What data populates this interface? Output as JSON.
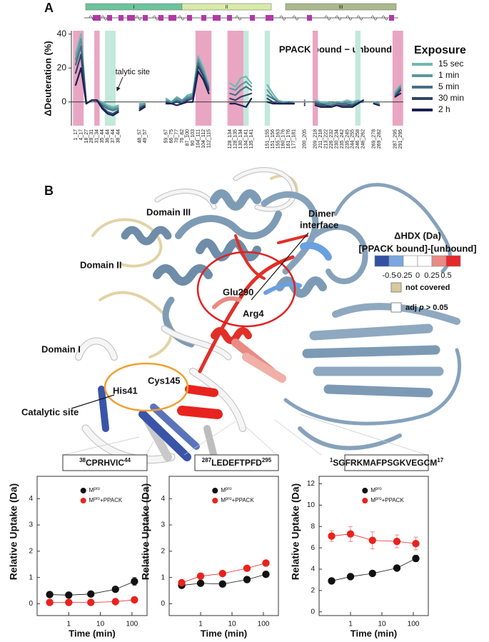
{
  "chart_data": [
    {
      "type": "line",
      "panel_label": "A",
      "subtitle": "PPACK bound − unbound",
      "annotation": "catalytic site",
      "y_label": "ΔDeuteration (%)",
      "legend_title": "Exposure",
      "domains": [
        {
          "label": "I",
          "color": "#6cc49c"
        },
        {
          "label": "II",
          "color": "#d8eaa8"
        },
        {
          "label": "III",
          "color": "#a9b98c"
        }
      ],
      "categories": [
        "1_17",
        "4_17",
        "18_27",
        "28_31",
        "31_34",
        "35_44",
        "36_44",
        "37_44",
        "38_44",
        null,
        null,
        null,
        "48_57",
        "49_57",
        null,
        null,
        null,
        "59_67",
        "66_75",
        "70_77",
        "76_82",
        "87_100",
        "90_103",
        "104_111",
        "104_112",
        "112_115",
        null,
        null,
        null,
        "128_134",
        "128_135",
        "130_134",
        "134_141",
        "135_141",
        null,
        null,
        "151_155",
        "151_156",
        "155_163",
        "160_176",
        "161_176",
        "177_181",
        null,
        "200_205",
        null,
        "209_218",
        "211_218",
        "213_222",
        "226_232",
        "230_234",
        "235_242",
        "235_245",
        "244_255",
        "246_258",
        "246_262",
        null,
        "269_278",
        "269_282",
        null,
        null,
        "287_295",
        "291_295"
      ],
      "ylim": [
        -14,
        42
      ],
      "yticks": [
        0,
        20,
        40
      ],
      "zero_line": true,
      "highlights": [
        {
          "from": "1_17",
          "to": "4_17",
          "color": "#e9a6c2"
        },
        {
          "from": "31_34",
          "to": "31_34",
          "color": "#e9a6c2"
        },
        {
          "from": "36_44",
          "to": "37_44",
          "color": "#c3e8dc"
        },
        {
          "from": "104_111",
          "to": "112_115",
          "color": "#e9a6c2"
        },
        {
          "from": "128_134",
          "to": "130_134",
          "color": "#e9a6c2"
        },
        {
          "from": "134_141",
          "to": "134_141",
          "color": "#c3e8dc"
        },
        {
          "from": "151_155",
          "to": "151_155",
          "color": "#c3e8dc"
        },
        {
          "from": "209_218",
          "to": "209_218",
          "color": "#e9a6c2"
        },
        {
          "from": "246_258",
          "to": "246_258",
          "color": "#c3e8dc"
        },
        {
          "from": "287_295",
          "to": "291_295",
          "color": "#e9a6c2"
        }
      ],
      "series": [
        {
          "name": "15 sec",
          "color": "#6fb9ae",
          "values": [
            28,
            40,
            -1,
            1,
            1,
            0,
            -2,
            -3,
            -2,
            null,
            null,
            null,
            -1,
            -1,
            null,
            null,
            null,
            2,
            0,
            3,
            1,
            4,
            5,
            27,
            20,
            10,
            null,
            null,
            null,
            11,
            9,
            14,
            15,
            11,
            null,
            null,
            10,
            5,
            1,
            0,
            0,
            0,
            null,
            1,
            null,
            1,
            0,
            0,
            -1,
            0,
            0,
            1,
            0,
            1,
            0,
            null,
            0,
            -1,
            null,
            null,
            6,
            10
          ]
        },
        {
          "name": "1 min",
          "color": "#5a98a0",
          "values": [
            25,
            37,
            -1,
            1,
            1,
            -1,
            -3,
            -4,
            -3,
            null,
            null,
            null,
            -2,
            -1,
            null,
            null,
            null,
            1,
            0,
            2,
            1,
            3,
            4,
            25,
            18,
            9,
            null,
            null,
            null,
            8,
            7,
            10,
            12,
            9,
            null,
            null,
            7,
            3,
            0,
            0,
            0,
            0,
            null,
            1,
            null,
            0,
            -1,
            -1,
            -1,
            0,
            -1,
            0,
            -1,
            0,
            0,
            null,
            0,
            -1,
            null,
            null,
            5,
            9
          ]
        },
        {
          "name": "5 min",
          "color": "#466f86",
          "values": [
            22,
            33,
            -1,
            1,
            1,
            -2,
            -4,
            -5,
            -4,
            null,
            null,
            null,
            -3,
            -2,
            null,
            null,
            null,
            0,
            -1,
            1,
            0,
            2,
            3,
            23,
            16,
            8,
            null,
            null,
            null,
            5,
            4,
            7,
            9,
            7,
            null,
            null,
            4,
            2,
            0,
            -1,
            0,
            -1,
            null,
            0,
            null,
            0,
            -1,
            -2,
            -2,
            -1,
            -1,
            -1,
            -2,
            0,
            0,
            null,
            -1,
            -2,
            null,
            null,
            4,
            8
          ]
        },
        {
          "name": "30 min",
          "color": "#2d4466",
          "values": [
            17,
            28,
            -1,
            1,
            1,
            -3,
            -6,
            -7,
            -5,
            null,
            null,
            null,
            -4,
            -2,
            null,
            null,
            null,
            0,
            -1,
            0,
            -1,
            1,
            2,
            21,
            15,
            7,
            null,
            null,
            null,
            2,
            1,
            3,
            4,
            5,
            null,
            null,
            2,
            0,
            -1,
            -1,
            -1,
            -1,
            null,
            -1,
            null,
            -1,
            -2,
            -2,
            -3,
            -2,
            -2,
            -2,
            -2,
            -1,
            1,
            null,
            -1,
            -2,
            null,
            null,
            3,
            7
          ]
        },
        {
          "name": "2 h",
          "color": "#1c1f52",
          "values": [
            10,
            20,
            -1,
            1,
            1,
            -4,
            -7,
            -8,
            -6,
            null,
            null,
            null,
            -5,
            -3,
            null,
            null,
            null,
            -1,
            -1,
            -2,
            -1,
            0,
            0,
            18,
            13,
            5,
            null,
            null,
            null,
            -1,
            -1,
            -2,
            -3,
            2,
            null,
            null,
            0,
            -1,
            -1,
            -1,
            -1,
            -1,
            null,
            -2,
            null,
            -2,
            -3,
            -3,
            -3,
            -2,
            -3,
            -3,
            -3,
            -1,
            1,
            null,
            -1,
            -2,
            null,
            null,
            3,
            5
          ]
        }
      ]
    },
    {
      "type": "line",
      "title": [
        "38",
        "CPRHVIC",
        "44"
      ],
      "x_label": "Time (min)",
      "y_label": "Relative Uptake (Da)",
      "x": [
        0.25,
        1,
        5,
        30,
        120
      ],
      "xscale": "log",
      "xlim": [
        0.1,
        300
      ],
      "xticks": [
        1,
        10,
        100
      ],
      "ylim": [
        -0.45,
        4.85
      ],
      "yticks": [
        0,
        1,
        2,
        3,
        4
      ],
      "series": [
        {
          "name": [
            "M",
            "pro"
          ],
          "color": "#111111",
          "values": [
            0.35,
            0.33,
            0.37,
            0.55,
            0.85
          ],
          "errors": [
            0.05,
            0.05,
            0.05,
            0.08,
            0.15
          ]
        },
        {
          "name": [
            "M",
            "pro",
            "+PPACK"
          ],
          "color": "#e8231e",
          "values": [
            0.05,
            0.05,
            0.05,
            0.08,
            0.15
          ],
          "errors": [
            0.03,
            0.03,
            0.03,
            0.05,
            0.08
          ]
        }
      ]
    },
    {
      "type": "line",
      "title": [
        "287",
        "LEDEFTPFD",
        "295"
      ],
      "x_label": "Time (min)",
      "y_label": "Relative Uptake (Da)",
      "x": [
        0.25,
        1,
        5,
        30,
        120
      ],
      "xscale": "log",
      "xlim": [
        0.1,
        300
      ],
      "xticks": [
        1,
        10,
        100
      ],
      "ylim": [
        -0.45,
        4.85
      ],
      "yticks": [
        0,
        1,
        2,
        3,
        4
      ],
      "series": [
        {
          "name": [
            "M",
            "pro"
          ],
          "color": "#111111",
          "values": [
            0.7,
            0.78,
            0.75,
            0.92,
            1.12
          ],
          "errors": [
            0.05,
            0.06,
            0.05,
            0.06,
            0.08
          ]
        },
        {
          "name": [
            "M",
            "pro",
            "+PPACK"
          ],
          "color": "#e8231e",
          "values": [
            0.8,
            1.05,
            1.15,
            1.35,
            1.55
          ],
          "errors": [
            0.06,
            0.06,
            0.06,
            0.08,
            0.1
          ]
        }
      ]
    },
    {
      "type": "line",
      "title": [
        "1",
        "SGFRKMAFPSGKVEGCM",
        "17"
      ],
      "x_label": "Time (min)",
      "y_label": "Relative Uptake (Da)",
      "x": [
        0.25,
        1,
        5,
        30,
        120
      ],
      "xscale": "log",
      "xlim": [
        0.1,
        300
      ],
      "xticks": [
        1,
        10,
        100
      ],
      "ylim": [
        -0.35,
        12.7
      ],
      "yticks": [
        0,
        2,
        4,
        6,
        8,
        10,
        12
      ],
      "series": [
        {
          "name": [
            "M",
            "pro"
          ],
          "color": "#111111",
          "values": [
            2.9,
            3.3,
            3.6,
            4.1,
            5.0
          ],
          "errors": [
            0.2,
            0.2,
            0.2,
            0.2,
            0.3
          ]
        },
        {
          "name": [
            "M",
            "pro",
            "+PPACK"
          ],
          "color": "#e8231e",
          "values": [
            7.1,
            7.3,
            6.7,
            6.6,
            6.4
          ],
          "errors": [
            0.5,
            0.7,
            0.8,
            0.6,
            0.6
          ]
        }
      ]
    }
  ],
  "structure": {
    "panel_label": "B",
    "domain_labels": [
      "Domain III",
      "Domain II",
      "Domain I"
    ],
    "dimer_label": [
      "Dimer",
      "interface"
    ],
    "residues": [
      "Glu290",
      "Arg4",
      "His41",
      "Cys145"
    ],
    "site_label": "Catalytic site",
    "legend": {
      "title": "ΔHDX (Da)",
      "subtitle": "[PPACK bound]-[unbound]",
      "colors": [
        "#3350a2",
        "#7ba7df",
        "#ffffff",
        "#ffffff",
        "#e98a85",
        "#e5282a"
      ],
      "lim": [
        -0.75,
        0.75
      ],
      "ticks": [
        -0.5,
        -0.25,
        0,
        0.25,
        0.5
      ],
      "not_covered": {
        "label": "not covered",
        "color": "#d9c89b"
      },
      "adj": {
        "label": [
          "adj ",
          "p",
          " > 0.05"
        ],
        "color": "#ffffff"
      }
    }
  }
}
